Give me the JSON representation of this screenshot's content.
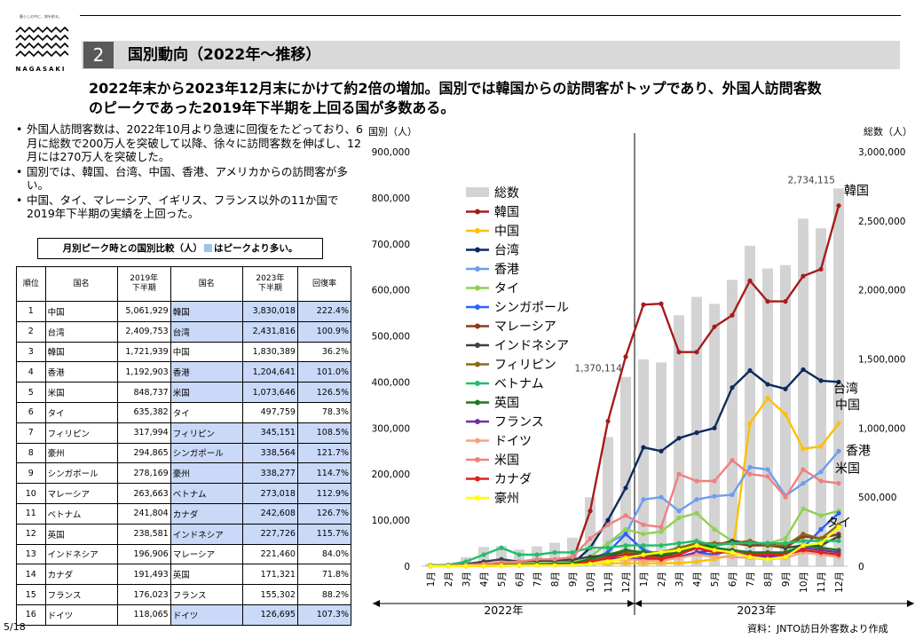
{
  "logo": {
    "tagline": "暮らしの中に、旅を創る。",
    "word": "NAGASAKI"
  },
  "header": {
    "number": "2",
    "title": "国別動向（2022年～推移）"
  },
  "lead": {
    "line1": "2022年末から2023年12月末にかけて約2倍の増加。国別では韓国からの訪問客がトップであり、外国人訪問客数",
    "line2": "のピークであった2019年下半期を上回る国が多数ある。"
  },
  "bullets": [
    "外国人訪問客数は、2022年10月より急速に回復をたどっており、6月に総数で200万人を突破して以降、徐々に訪問客数を伸ばし、12月には270万人を突破した。",
    "国別では、韓国、台湾、中国、香港、アメリカからの訪問客が多い。",
    "中国、タイ、マレーシア、イギリス、フランス以外の11か国で2019年下半期の実績を上回った。"
  ],
  "caption": {
    "before": "月別ピーク時との国別比較（人）",
    "after": "はピークより多い。"
  },
  "table": {
    "headers": [
      "順位",
      "国名",
      "2019年\n下半期",
      "国名",
      "2023年\n下半期",
      "回復率"
    ],
    "rows": [
      {
        "rank": "1",
        "c1": "中国",
        "v1": "5,061,929",
        "c2": "韓国",
        "v2": "3,830,018",
        "rate": "222.4%",
        "hl": true
      },
      {
        "rank": "2",
        "c1": "台湾",
        "v1": "2,409,753",
        "c2": "台湾",
        "v2": "2,431,816",
        "rate": "100.9%",
        "hl": true
      },
      {
        "rank": "3",
        "c1": "韓国",
        "v1": "1,721,939",
        "c2": "中国",
        "v2": "1,830,389",
        "rate": "36.2%",
        "hl": false
      },
      {
        "rank": "4",
        "c1": "香港",
        "v1": "1,192,903",
        "c2": "香港",
        "v2": "1,204,641",
        "rate": "101.0%",
        "hl": true
      },
      {
        "rank": "5",
        "c1": "米国",
        "v1": "848,737",
        "c2": "米国",
        "v2": "1,073,646",
        "rate": "126.5%",
        "hl": true
      },
      {
        "rank": "6",
        "c1": "タイ",
        "v1": "635,382",
        "c2": "タイ",
        "v2": "497,759",
        "rate": "78.3%",
        "hl": false
      },
      {
        "rank": "7",
        "c1": "フィリピン",
        "v1": "317,994",
        "c2": "フィリピン",
        "v2": "345,151",
        "rate": "108.5%",
        "hl": true
      },
      {
        "rank": "8",
        "c1": "豪州",
        "v1": "294,865",
        "c2": "シンガポール",
        "v2": "338,564",
        "rate": "121.7%",
        "hl": true
      },
      {
        "rank": "9",
        "c1": "シンガポール",
        "v1": "278,169",
        "c2": "豪州",
        "v2": "338,277",
        "rate": "114.7%",
        "hl": true
      },
      {
        "rank": "10",
        "c1": "マレーシア",
        "v1": "263,663",
        "c2": "ベトナム",
        "v2": "273,018",
        "rate": "112.9%",
        "hl": true
      },
      {
        "rank": "11",
        "c1": "ベトナム",
        "v1": "241,804",
        "c2": "カナダ",
        "v2": "242,608",
        "rate": "126.7%",
        "hl": true
      },
      {
        "rank": "12",
        "c1": "英国",
        "v1": "238,581",
        "c2": "インドネシア",
        "v2": "227,726",
        "rate": "115.7%",
        "hl": true
      },
      {
        "rank": "13",
        "c1": "インドネシア",
        "v1": "196,906",
        "c2": "マレーシア",
        "v2": "221,460",
        "rate": "84.0%",
        "hl": false
      },
      {
        "rank": "14",
        "c1": "カナダ",
        "v1": "191,493",
        "c2": "英国",
        "v2": "171,321",
        "rate": "71.8%",
        "hl": false
      },
      {
        "rank": "15",
        "c1": "フランス",
        "v1": "176,023",
        "c2": "フランス",
        "v2": "155,302",
        "rate": "88.2%",
        "hl": false
      },
      {
        "rank": "16",
        "c1": "ドイツ",
        "v1": "118,065",
        "c2": "ドイツ",
        "v2": "126,695",
        "rate": "107.3%",
        "hl": true
      }
    ]
  },
  "page_number": "5/18",
  "source": "資料：JNTO訪日外客数より作成",
  "colors": {
    "total_bar": "#d3d3d3",
    "highlight": "#c9d9f7"
  },
  "chart_data": {
    "type": "line",
    "left_axis_label": "国別（人）",
    "right_axis_label": "総数（人）",
    "left_ylim": [
      0,
      900000
    ],
    "left_ticks": [
      "0",
      "100,000",
      "200,000",
      "300,000",
      "400,000",
      "500,000",
      "600,000",
      "700,000",
      "800,000",
      "900,000"
    ],
    "right_ylim": [
      0,
      3000000
    ],
    "right_ticks": [
      "0",
      "500,000",
      "1,000,000",
      "1,500,000",
      "2,000,000",
      "2,500,000",
      "3,000,000"
    ],
    "categories": [
      "1月",
      "2月",
      "3月",
      "4月",
      "5月",
      "6月",
      "7月",
      "8月",
      "9月",
      "10月",
      "11月",
      "12月",
      "1月",
      "2月",
      "3月",
      "4月",
      "5月",
      "6月",
      "7月",
      "8月",
      "9月",
      "10月",
      "11月",
      "12月"
    ],
    "year_labels": [
      "2022年",
      "2023年"
    ],
    "total_annotations": [
      {
        "index": 11,
        "text": "1,370,114"
      },
      {
        "index": 23,
        "text": "2,734,115"
      }
    ],
    "total": {
      "name": "総数",
      "color": "#d3d3d3",
      "values": [
        17766,
        16719,
        66121,
        139548,
        147046,
        120400,
        144400,
        169902,
        206641,
        498646,
        934599,
        1370114,
        1497472,
        1475455,
        1817000,
        1949236,
        1899176,
        2073300,
        2319700,
        2155000,
        2179500,
        2516000,
        2446000,
        2734115
      ]
    },
    "series": [
      {
        "name": "韓国",
        "color": "#a61c1c",
        "values": [
          2000,
          1500,
          3000,
          4000,
          5000,
          5000,
          6000,
          7000,
          10000,
          120000,
          315000,
          455000,
          568000,
          570000,
          465000,
          465000,
          520000,
          545000,
          620000,
          575000,
          575000,
          630000,
          645000,
          783000
        ]
      },
      {
        "name": "中国",
        "color": "#ffc000",
        "values": [
          1500,
          1800,
          2500,
          3000,
          3000,
          3200,
          3500,
          4000,
          4500,
          5000,
          6000,
          7000,
          6000,
          6500,
          6800,
          10000,
          15000,
          25000,
          310000,
          365000,
          330000,
          255000,
          260000,
          310000
        ]
      },
      {
        "name": "台湾",
        "color": "#0d2a5c",
        "values": [
          1000,
          1000,
          1500,
          1500,
          2000,
          2000,
          2500,
          3000,
          5000,
          40000,
          100000,
          170000,
          258000,
          250000,
          278000,
          290000,
          300000,
          388000,
          425000,
          395000,
          385000,
          427000,
          403000,
          400000
        ]
      },
      {
        "name": "香港",
        "color": "#6b9ef0",
        "values": [
          500,
          500,
          800,
          1000,
          1500,
          1500,
          2000,
          2000,
          3000,
          20000,
          50000,
          70000,
          145000,
          150000,
          120000,
          145000,
          152000,
          155000,
          215000,
          210000,
          153000,
          180000,
          205000,
          250000
        ]
      },
      {
        "name": "タイ",
        "color": "#8fd14f",
        "values": [
          1000,
          1500,
          3000,
          5000,
          8000,
          6000,
          7000,
          7000,
          8000,
          20000,
          50000,
          80000,
          70000,
          75000,
          105000,
          115000,
          80000,
          55000,
          50000,
          50000,
          60000,
          125000,
          110000,
          120000
        ]
      },
      {
        "name": "シンガポール",
        "color": "#2962ff",
        "values": [
          500,
          500,
          1000,
          2000,
          3000,
          3000,
          4000,
          5000,
          5000,
          15000,
          30000,
          70000,
          35000,
          25000,
          20000,
          30000,
          25000,
          35000,
          30000,
          25000,
          30000,
          40000,
          80000,
          115000
        ]
      },
      {
        "name": "マレーシア",
        "color": "#8b3a1a",
        "values": [
          500,
          500,
          1000,
          1500,
          2000,
          2000,
          2500,
          2500,
          3000,
          10000,
          20000,
          30000,
          25000,
          20000,
          30000,
          40000,
          45000,
          50000,
          45000,
          45000,
          40000,
          65000,
          60000,
          70000
        ]
      },
      {
        "name": "インドネシア",
        "color": "#404040",
        "values": [
          1000,
          1000,
          5000,
          10000,
          15000,
          10000,
          12000,
          12000,
          15000,
          20000,
          25000,
          30000,
          25000,
          25000,
          40000,
          45000,
          45000,
          55000,
          50000,
          50000,
          40000,
          45000,
          45000,
          65000
        ]
      },
      {
        "name": "フィリピン",
        "color": "#8b6914",
        "values": [
          800,
          800,
          2000,
          3000,
          3000,
          3000,
          4000,
          4000,
          5000,
          10000,
          15000,
          30000,
          30000,
          30000,
          40000,
          50000,
          50000,
          50000,
          55000,
          45000,
          45000,
          70000,
          60000,
          90000
        ]
      },
      {
        "name": "ベトナム",
        "color": "#1fbf6a",
        "values": [
          2000,
          3000,
          10000,
          25000,
          40000,
          25000,
          25000,
          30000,
          30000,
          40000,
          40000,
          45000,
          45000,
          45000,
          50000,
          55000,
          45000,
          50000,
          50000,
          50000,
          50000,
          55000,
          55000,
          55000
        ]
      },
      {
        "name": "英国",
        "color": "#1b7a1b",
        "values": [
          500,
          500,
          800,
          1000,
          2000,
          3000,
          4000,
          5000,
          6000,
          15000,
          25000,
          35000,
          30000,
          25000,
          30000,
          45000,
          40000,
          35000,
          30000,
          30000,
          30000,
          45000,
          40000,
          35000
        ]
      },
      {
        "name": "フランス",
        "color": "#7030a0",
        "values": [
          300,
          300,
          500,
          800,
          1000,
          1500,
          2000,
          3000,
          3500,
          10000,
          15000,
          18000,
          15000,
          12000,
          20000,
          30000,
          35000,
          30000,
          25000,
          20000,
          25000,
          40000,
          35000,
          30000
        ]
      },
      {
        "name": "ドイツ",
        "color": "#f4a582",
        "values": [
          300,
          300,
          500,
          700,
          1000,
          1500,
          2000,
          2000,
          3000,
          8000,
          12000,
          15000,
          12000,
          12000,
          18000,
          25000,
          20000,
          20000,
          18000,
          15000,
          18000,
          30000,
          25000,
          20000
        ]
      },
      {
        "name": "米国",
        "color": "#f08080",
        "values": [
          1000,
          1000,
          3000,
          5000,
          8000,
          10000,
          15000,
          15000,
          20000,
          60000,
          90000,
          110000,
          90000,
          85000,
          200000,
          185000,
          185000,
          230000,
          200000,
          195000,
          150000,
          210000,
          185000,
          180000
        ]
      },
      {
        "name": "カナダ",
        "color": "#e02020",
        "values": [
          300,
          300,
          500,
          1000,
          1500,
          2000,
          2500,
          3000,
          3500,
          10000,
          18000,
          25000,
          20000,
          15000,
          25000,
          40000,
          30000,
          30000,
          25000,
          25000,
          25000,
          35000,
          30000,
          25000
        ]
      },
      {
        "name": "豪州",
        "color": "#ffff00",
        "values": [
          300,
          300,
          500,
          800,
          1000,
          1500,
          2000,
          2000,
          2500,
          5000,
          10000,
          18000,
          25000,
          30000,
          35000,
          45000,
          35000,
          30000,
          20000,
          15000,
          20000,
          45000,
          50000,
          85000
        ]
      }
    ],
    "series_end_labels": [
      {
        "name": "韓国",
        "text": "韓国"
      },
      {
        "name": "香港",
        "text": "香港"
      },
      {
        "name": "中国",
        "text": "中国"
      },
      {
        "name": "台湾",
        "text": "台湾"
      },
      {
        "name": "米国",
        "text": "米国"
      },
      {
        "name": "タイ",
        "text": "タイ"
      }
    ],
    "legend_placement": "top-left",
    "grid": false
  }
}
